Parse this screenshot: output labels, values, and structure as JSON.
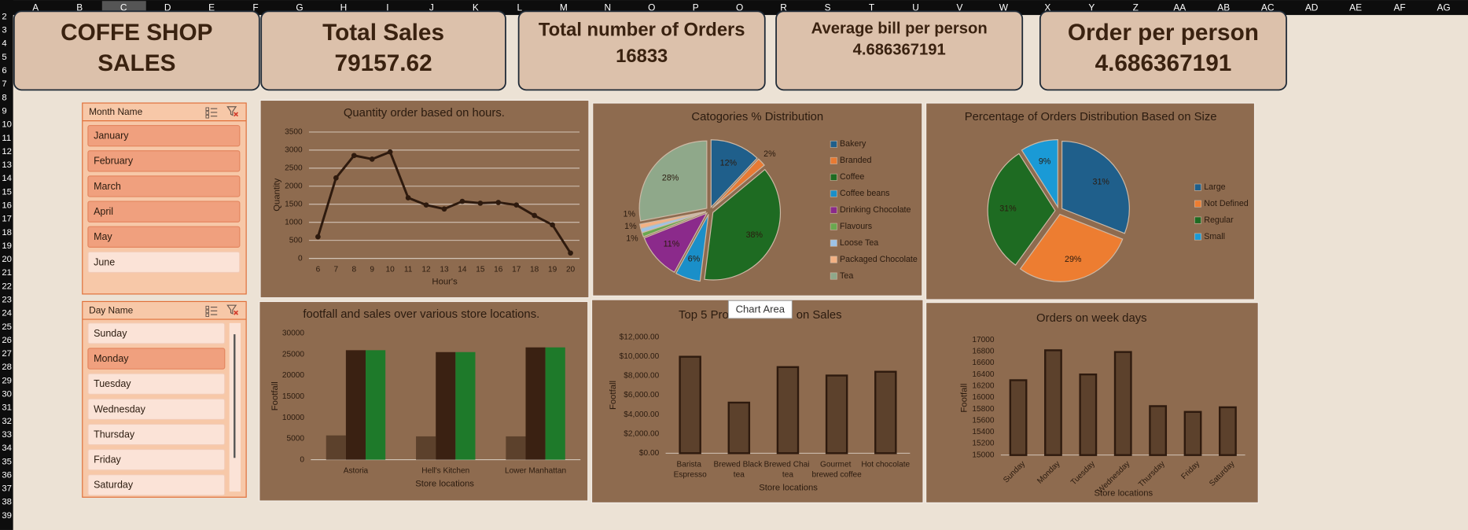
{
  "sheet": {
    "columns": [
      "A",
      "B",
      "C",
      "D",
      "E",
      "F",
      "G",
      "H",
      "I",
      "J",
      "K",
      "L",
      "M",
      "N",
      "O",
      "P",
      "Q",
      "R",
      "S",
      "T",
      "U",
      "V",
      "W",
      "X",
      "Y",
      "Z",
      "AA",
      "AB",
      "AC",
      "AD",
      "AE",
      "AF",
      "AG"
    ],
    "rows": [
      2,
      3,
      4,
      5,
      6,
      7,
      8,
      9,
      10,
      11,
      12,
      13,
      14,
      15,
      16,
      17,
      18,
      19,
      20,
      21,
      22,
      23,
      24,
      25,
      26,
      27,
      28,
      29,
      30,
      31,
      32,
      33,
      34,
      35,
      36,
      37,
      38,
      39
    ]
  },
  "cards": [
    {
      "title_lines": [
        "COFFE SHOP",
        "SALES"
      ]
    },
    {
      "title": "Total Sales",
      "value": 79157.62
    },
    {
      "title": "Total number of Orders",
      "value": 16833
    },
    {
      "title": "Average bill per person",
      "value": 4.686367191
    },
    {
      "title": "Order per person",
      "value": 4.686367191
    }
  ],
  "slicers": [
    {
      "title": "Month Name",
      "items": [
        "January",
        "February",
        "March",
        "April",
        "May",
        "June"
      ],
      "selected": [
        true,
        true,
        true,
        true,
        true,
        false
      ]
    },
    {
      "title": "Day Name",
      "items": [
        "Sunday",
        "Monday",
        "Tuesday",
        "Wednesday",
        "Thursday",
        "Friday",
        "Saturday"
      ],
      "selected": [
        false,
        true,
        false,
        false,
        false,
        false,
        false
      ]
    }
  ],
  "tooltip": "Chart Area",
  "chart_data": [
    {
      "type": "line",
      "title": "Quantity order based on hours.",
      "x_label": "Hour's",
      "y_label": "Quantity",
      "categories": [
        "6",
        "7",
        "8",
        "9",
        "10",
        "11",
        "12",
        "13",
        "14",
        "15",
        "16",
        "17",
        "18",
        "19",
        "20"
      ],
      "values": [
        600,
        2230,
        2850,
        2750,
        2950,
        1680,
        1480,
        1370,
        1580,
        1530,
        1550,
        1480,
        1190,
        930,
        150
      ],
      "color": "#2e1a0e",
      "ylim": [
        0,
        3500
      ],
      "yticks": [
        0,
        500,
        1000,
        1500,
        2000,
        2500,
        3000,
        3500
      ],
      "grid": true
    },
    {
      "type": "pie",
      "title": "Catogories % Distribution",
      "categories": [
        "Bakery",
        "Branded",
        "Coffee",
        "Coffee beans",
        "Drinking Chocolate",
        "Flavours",
        "Loose Tea",
        "Packaged Chocolate",
        "Tea"
      ],
      "values": [
        12,
        2,
        38,
        6,
        11,
        1,
        1,
        1,
        28
      ],
      "value_labels": [
        "12%",
        "2%",
        "38%",
        "6%",
        "11%",
        "1%",
        "1%",
        "1%",
        "28%"
      ],
      "colors": [
        "#1f5f8b",
        "#e87a33",
        "#1e6b22",
        "#1a8fc9",
        "#8b2a8b",
        "#6aa84f",
        "#9dc3e6",
        "#f4b183",
        "#8fa88a"
      ]
    },
    {
      "type": "pie",
      "title": "Percentage  of Orders Distribution Based on Size",
      "categories": [
        "Large",
        "Not Defined",
        "Regular",
        "Small"
      ],
      "values": [
        31,
        29,
        31,
        9
      ],
      "value_labels": [
        "31%",
        "29%",
        "31%",
        "9%"
      ],
      "colors": [
        "#1f5f8b",
        "#ed7d31",
        "#1e6b22",
        "#1a9ad6"
      ]
    },
    {
      "type": "bar",
      "title": "footfall  and sales over various store  locations.",
      "x_label": "Store locations",
      "y_label": "Footfall",
      "categories": [
        "Astoria",
        "Hell's Kitchen",
        "Lower Manhattan"
      ],
      "series": [
        {
          "color": "#5c412c",
          "values": [
            5780,
            5550,
            5550
          ]
        },
        {
          "color": "#3a2112",
          "values": [
            26000,
            25550,
            26670
          ]
        },
        {
          "color": "#1e7a2a",
          "values": [
            26000,
            25550,
            26670
          ]
        }
      ],
      "ylim": [
        0,
        30000
      ],
      "yticks": [
        0,
        5000,
        10000,
        15000,
        20000,
        25000,
        30000
      ]
    },
    {
      "type": "bar",
      "title": "Top 5 Products Based on Sales",
      "x_label": "Store locations",
      "y_label": "Footfall",
      "categories": [
        "Barista Espresso",
        "Brewed Black tea",
        "Brewed Chai tea",
        "Gourmet brewed coffee",
        "Hot chocolate"
      ],
      "series": [
        {
          "color": "#5c412c",
          "values": [
            9970,
            5230,
            8900,
            8030,
            8420
          ]
        }
      ],
      "edgecolor": "#2e1a0e",
      "ylim": [
        0,
        12000
      ],
      "yticks": [
        {
          "value": 0,
          "label": "$0.00"
        },
        {
          "value": 2000,
          "label": "$2,000.00"
        },
        {
          "value": 4000,
          "label": "$4,000.00"
        },
        {
          "value": 6000,
          "label": "$6,000.00"
        },
        {
          "value": 8000,
          "label": "$8,000.00"
        },
        {
          "value": 10000,
          "label": "$10,000.00"
        },
        {
          "value": 12000,
          "label": "$12,000.00"
        }
      ]
    },
    {
      "type": "bar",
      "title": "Orders on week days",
      "x_label": "Store locations",
      "y_label": "Footfall",
      "categories": [
        "Sunday",
        "Monday",
        "Tuesday",
        "Wednesday",
        "Thursday",
        "Friday",
        "Saturday"
      ],
      "series": [
        {
          "color": "#5c412c",
          "values": [
            16300,
            16820,
            16400,
            16790,
            15850,
            15750,
            15830
          ]
        }
      ],
      "edgecolor": "#2e1a0e",
      "ylim": [
        15000,
        17000
      ],
      "yticks": [
        15000,
        15200,
        15400,
        15600,
        15800,
        16000,
        16200,
        16400,
        16600,
        16800,
        17000
      ]
    }
  ]
}
